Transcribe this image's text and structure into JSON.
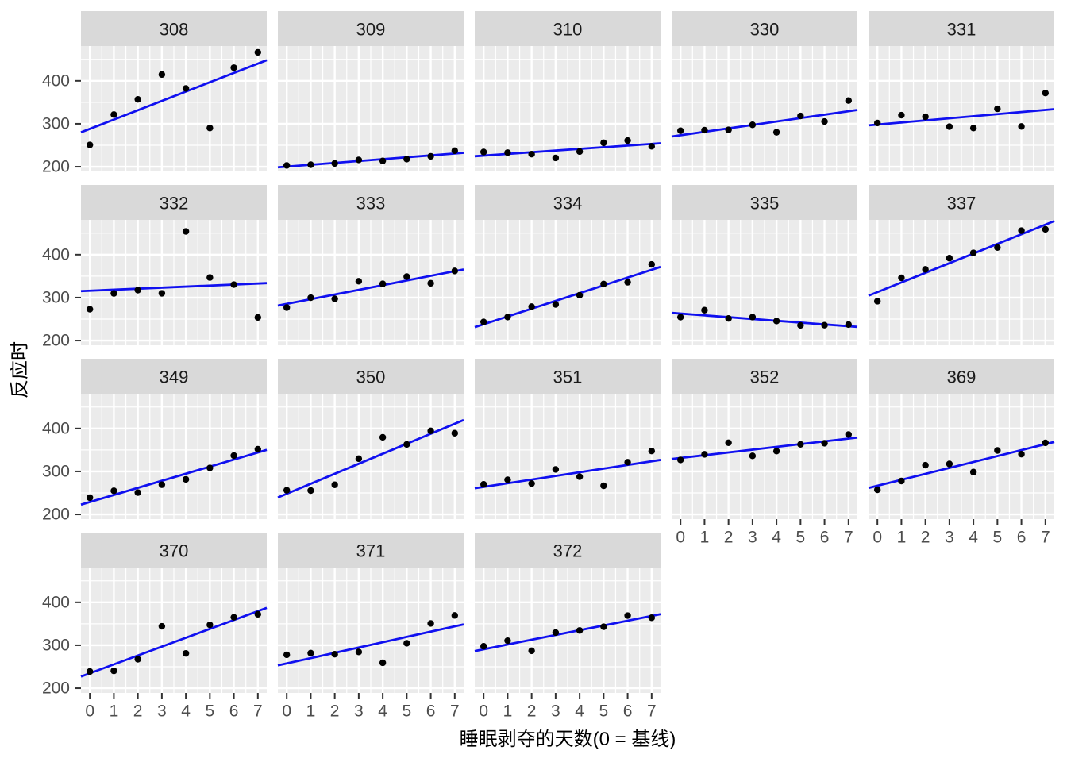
{
  "figure": {
    "background": "#ffffff"
  },
  "chart_data": {
    "type": "scatter",
    "title": "",
    "xlabel": "睡眠剥夺的天数(0 = 基线)",
    "ylabel": "反应时",
    "facet_variable": "Subject",
    "facet_layout": {
      "ncol": 5,
      "nrow": 4
    },
    "x": [
      0,
      1,
      2,
      3,
      4,
      5,
      6,
      7
    ],
    "x_ticks": [
      "0",
      "1",
      "2",
      "3",
      "4",
      "5",
      "6",
      "7"
    ],
    "y_ticks": [
      200,
      300,
      400
    ],
    "y_minor_ticks": [
      250,
      350,
      450
    ],
    "x_minor_ticks": [
      0.5,
      1.5,
      2.5,
      3.5,
      4.5,
      5.5,
      6.5
    ],
    "xlim": [
      -0.37,
      7.37
    ],
    "ylim": [
      189,
      481
    ],
    "grid": {
      "major": true,
      "minor": true
    },
    "smooth": {
      "method": "lm",
      "se": false
    },
    "legend_position": "none",
    "series": [
      {
        "name": "308",
        "values": [
          250.8,
          321.44,
          356.85,
          414.69,
          382.2,
          290.15,
          430.59,
          466.35
        ]
      },
      {
        "name": "309",
        "values": [
          202.98,
          204.71,
          207.72,
          215.96,
          213.63,
          217.73,
          224.3,
          237.31
        ]
      },
      {
        "name": "310",
        "values": [
          234.32,
          232.84,
          229.31,
          220.46,
          235.42,
          255.75,
          261.01,
          247.52
        ]
      },
      {
        "name": "330",
        "values": [
          283.86,
          285.13,
          285.8,
          297.59,
          280.24,
          318.26,
          305.35,
          354.05
        ]
      },
      {
        "name": "331",
        "values": [
          301.82,
          320.12,
          316.28,
          293.32,
          290.08,
          334.82,
          293.75,
          371.58
        ]
      },
      {
        "name": "332",
        "values": [
          272.96,
          309.77,
          317.46,
          310.0,
          454.16,
          346.83,
          330.3,
          253.86
        ]
      },
      {
        "name": "333",
        "values": [
          276.77,
          299.81,
          297.17,
          338.17,
          332.03,
          348.84,
          333.36,
          362.04
        ]
      },
      {
        "name": "334",
        "values": [
          243.36,
          254.67,
          279.02,
          284.19,
          305.52,
          331.52,
          335.75,
          377.3
        ]
      },
      {
        "name": "335",
        "values": [
          254.49,
          270.8,
          251.45,
          254.64,
          245.45,
          235.31,
          235.75,
          237.25
        ]
      },
      {
        "name": "337",
        "values": [
          291.61,
          346.12,
          365.73,
          391.84,
          404.26,
          416.69,
          455.86,
          458.92
        ]
      },
      {
        "name": "349",
        "values": [
          238.93,
          254.92,
          250.71,
          269.09,
          281.58,
          308.1,
          336.85,
          351.65
        ]
      },
      {
        "name": "350",
        "values": [
          256.2,
          255.53,
          268.92,
          329.72,
          379.44,
          362.92,
          394.49,
          389.05
        ]
      },
      {
        "name": "351",
        "values": [
          269.89,
          280.59,
          271.83,
          304.63,
          287.75,
          266.6,
          321.54,
          347.57
        ]
      },
      {
        "name": "352",
        "values": [
          326.88,
          339.85,
          366.8,
          336.25,
          347.35,
          363.05,
          365.58,
          385.91
        ]
      },
      {
        "name": "369",
        "values": [
          257.24,
          277.71,
          314.52,
          317.43,
          298.51,
          348.84,
          340.28,
          366.51
        ]
      },
      {
        "name": "370",
        "values": [
          238.9,
          240.47,
          267.54,
          344.19,
          281.15,
          347.59,
          365.16,
          372.23
        ]
      },
      {
        "name": "371",
        "values": [
          277.9,
          281.79,
          279.17,
          284.51,
          259.27,
          304.63,
          350.78,
          369.47
        ]
      },
      {
        "name": "372",
        "values": [
          297.6,
          310.63,
          287.17,
          329.61,
          334.48,
          343.22,
          369.14,
          364.12
        ]
      }
    ],
    "colors": {
      "point": "#000000",
      "line": "#1010f0",
      "panel_bg": "#ebebeb",
      "strip_bg": "#d9d9d9",
      "grid": "#ffffff",
      "tick_text": "#4d4d4d",
      "strip_text": "#1a1a1a",
      "tick_mark": "#333333",
      "axis_title": "#000000"
    }
  }
}
